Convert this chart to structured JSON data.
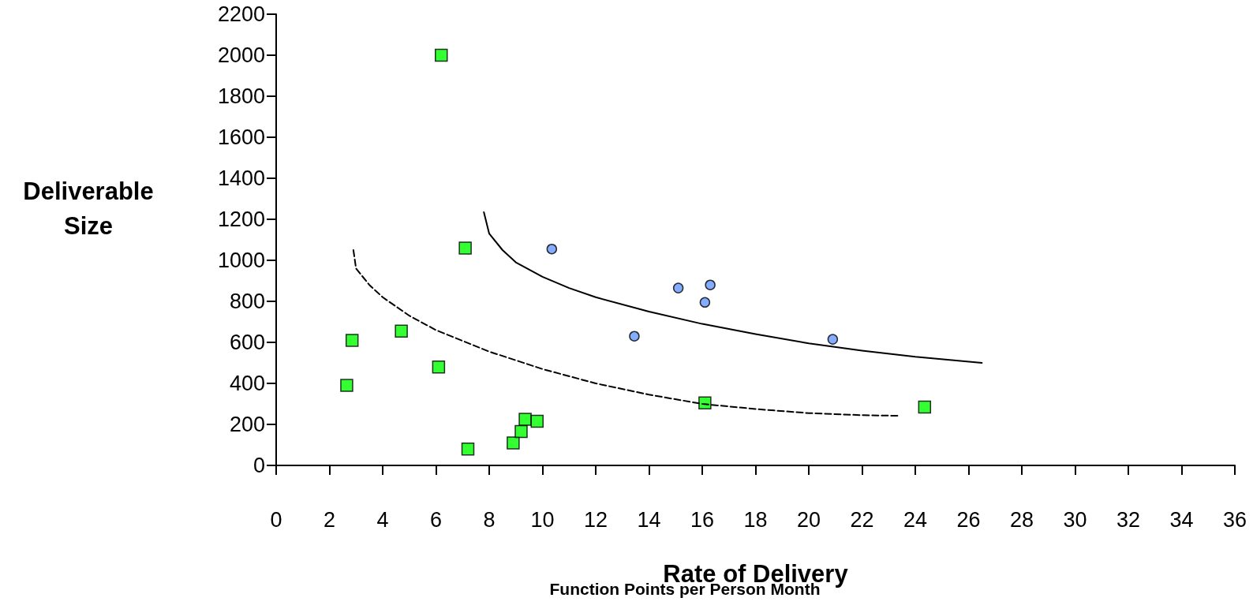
{
  "chart_data": {
    "type": "scatter",
    "xlabel": "Rate of Delivery",
    "ylabel": "Deliverable Size",
    "annotations": [
      "Function Points per Person Month"
    ],
    "xlim": [
      0,
      36
    ],
    "xticks": [
      0,
      2,
      4,
      6,
      8,
      10,
      12,
      14,
      16,
      18,
      20,
      22,
      24,
      26,
      28,
      30,
      32,
      34,
      36
    ],
    "ylim": [
      0,
      2200
    ],
    "yticks": [
      0,
      200,
      400,
      600,
      800,
      1000,
      1200,
      1400,
      1600,
      1800,
      2000,
      2200
    ],
    "grid": false,
    "series": [
      {
        "type": "scatter",
        "marker": "square",
        "color": "#00ff00",
        "x": [
          6.2,
          7.1,
          2.85,
          4.7,
          2.65,
          6.1,
          7.2,
          8.9,
          9.2,
          9.35,
          9.8,
          16.1,
          24.35
        ],
        "values": [
          2000,
          1060,
          610,
          655,
          390,
          480,
          80,
          110,
          165,
          225,
          215,
          305,
          285
        ]
      },
      {
        "type": "scatter",
        "marker": "circle",
        "color": "#6699ff",
        "x": [
          10.35,
          15.1,
          16.3,
          16.1,
          13.45,
          20.9
        ],
        "values": [
          1055,
          865,
          880,
          795,
          630,
          615
        ]
      },
      {
        "type": "line",
        "marker": "none",
        "line_style": "solid",
        "color": "#000000",
        "x": [
          7.8,
          8,
          8.5,
          9,
          10,
          11,
          12,
          14,
          16,
          18,
          20,
          22,
          24,
          26.5
        ],
        "values": [
          1235,
          1130,
          1050,
          990,
          920,
          865,
          820,
          750,
          690,
          640,
          595,
          560,
          530,
          500
        ]
      },
      {
        "type": "line",
        "marker": "none",
        "line_style": "dashed",
        "color": "#000000",
        "x": [
          2.9,
          3,
          3.5,
          4,
          5,
          6,
          8,
          10,
          12,
          14,
          16,
          18,
          20,
          22,
          23.4
        ],
        "values": [
          1050,
          960,
          880,
          820,
          730,
          660,
          555,
          470,
          400,
          345,
          300,
          275,
          255,
          245,
          242
        ]
      }
    ]
  }
}
